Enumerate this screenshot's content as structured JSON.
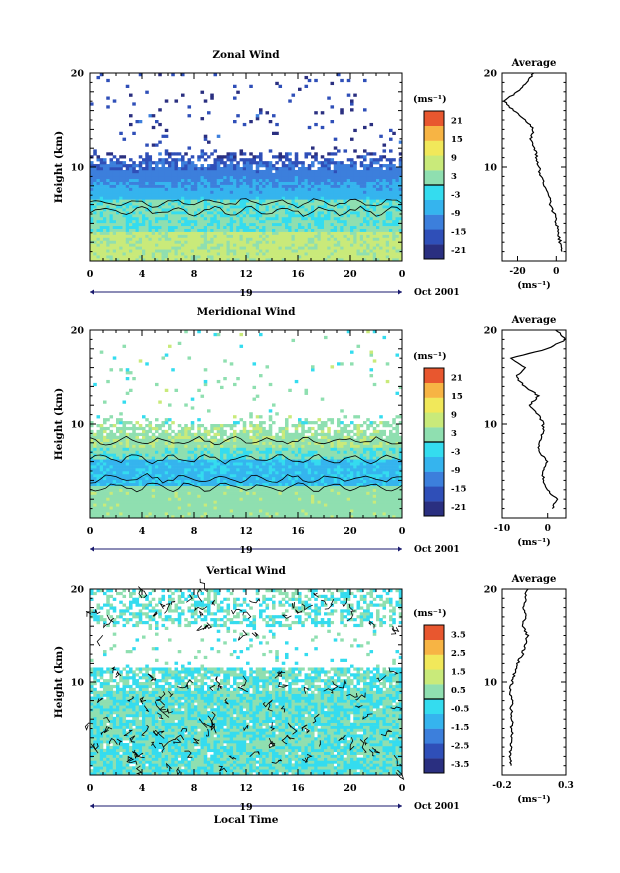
{
  "xaxis": {
    "ticks": [
      "0",
      "4",
      "8",
      "12",
      "16",
      "20",
      "0"
    ],
    "day": "19",
    "month_label": "Oct 2001",
    "label": "Local Time"
  },
  "unit_label": "(ms⁻¹)",
  "chart_data": [
    {
      "type": "heatmap",
      "title": "Zonal Wind",
      "ylabel": "Height (km)",
      "ylim": [
        0,
        20
      ],
      "yticks": [
        "10",
        "20"
      ],
      "xlim": [
        0,
        24
      ],
      "colorbar": {
        "labels": [
          "21",
          "15",
          "9",
          "3",
          "-3",
          "-9",
          "-15",
          "-21"
        ],
        "range": [
          -24,
          24
        ]
      },
      "profile": {
        "title": "Average",
        "xlabel": "(ms⁻¹)",
        "xticks": [
          "-20",
          "0"
        ],
        "xlim": [
          -28,
          5
        ],
        "yticks": [
          "10",
          "20"
        ],
        "heights": [
          1,
          2,
          3,
          4,
          5,
          6,
          7,
          8,
          9,
          10,
          11,
          12,
          13,
          14,
          15,
          16,
          17,
          18,
          19,
          20
        ],
        "values": [
          3,
          2,
          1,
          0,
          -1,
          -3,
          -4,
          -6,
          -8,
          -9,
          -10,
          -11,
          -13,
          -12,
          -16,
          -22,
          -27,
          -20,
          -15,
          -12
        ]
      }
    },
    {
      "type": "heatmap",
      "title": "Meridional Wind",
      "ylabel": "Height (km)",
      "ylim": [
        0,
        20
      ],
      "yticks": [
        "10",
        "20"
      ],
      "xlim": [
        0,
        24
      ],
      "colorbar": {
        "labels": [
          "21",
          "15",
          "9",
          "3",
          "-3",
          "-9",
          "-15",
          "-21"
        ],
        "range": [
          -24,
          24
        ]
      },
      "profile": {
        "title": "Average",
        "xlabel": "(ms⁻¹)",
        "xticks": [
          "-10",
          "0"
        ],
        "xlim": [
          -10,
          4
        ],
        "yticks": [
          "10",
          "20"
        ],
        "heights": [
          1,
          2,
          3,
          4,
          5,
          6,
          7,
          8,
          9,
          10,
          11,
          12,
          13,
          14,
          15,
          16,
          17,
          18,
          19,
          20
        ],
        "values": [
          1,
          2,
          0,
          -1,
          -1,
          0,
          -2,
          -2,
          -1,
          -1,
          -2,
          -4,
          -2,
          -5,
          -7,
          -5,
          -8,
          0,
          4,
          2
        ]
      }
    },
    {
      "type": "heatmap",
      "title": "Vertical Wind",
      "ylabel": "Height (km)",
      "ylim": [
        0,
        20
      ],
      "yticks": [
        "10",
        "20"
      ],
      "xlim": [
        0,
        24
      ],
      "colorbar": {
        "labels": [
          "3.5",
          "2.5",
          "1.5",
          "0.5",
          "-0.5",
          "-1.5",
          "-2.5",
          "-3.5"
        ],
        "range": [
          -4,
          4
        ]
      },
      "profile": {
        "title": "Average",
        "xlabel": "(ms⁻¹)",
        "xticks": [
          "-0.2",
          "0.3"
        ],
        "xlim": [
          -0.2,
          0.3
        ],
        "yticks": [
          "10",
          "20"
        ],
        "heights": [
          1,
          2,
          3,
          4,
          5,
          6,
          7,
          8,
          9,
          10,
          11,
          12,
          13,
          14,
          15,
          16,
          17,
          18,
          19,
          20
        ],
        "values": [
          -0.13,
          -0.14,
          -0.13,
          -0.12,
          -0.13,
          -0.12,
          -0.13,
          -0.12,
          -0.14,
          -0.12,
          -0.1,
          -0.08,
          -0.04,
          -0.02,
          0.0,
          -0.04,
          -0.02,
          -0.03,
          -0.02,
          0.0
        ]
      }
    }
  ]
}
